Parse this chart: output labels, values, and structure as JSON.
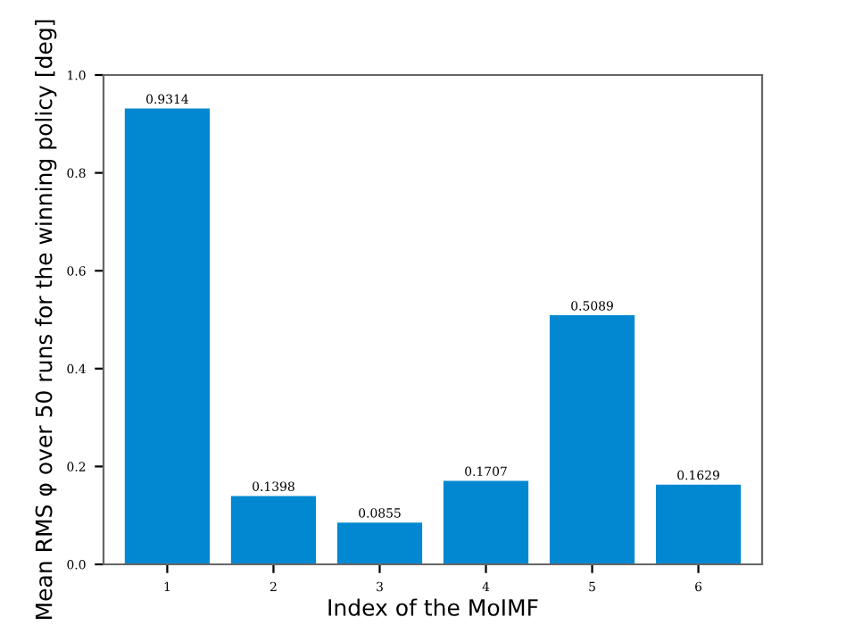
{
  "chart_data": {
    "type": "bar",
    "xlabel": "Index of the MoIMF",
    "ylabel": "Mean RMS φ over 50 runs for the winning policy [deg]",
    "categories": [
      "1",
      "2",
      "3",
      "4",
      "5",
      "6"
    ],
    "values": [
      0.9314,
      0.1398,
      0.0855,
      0.1707,
      0.5089,
      0.1629
    ],
    "color": "#0288d1",
    "data_labels": true,
    "ylim": [
      0,
      1.0
    ],
    "yticks": [
      {
        "value": 0,
        "label": "0.0"
      },
      0.2,
      0.4,
      0.6,
      0.8,
      {
        "value": 1,
        "label": "1.0"
      }
    ],
    "grid": false
  }
}
